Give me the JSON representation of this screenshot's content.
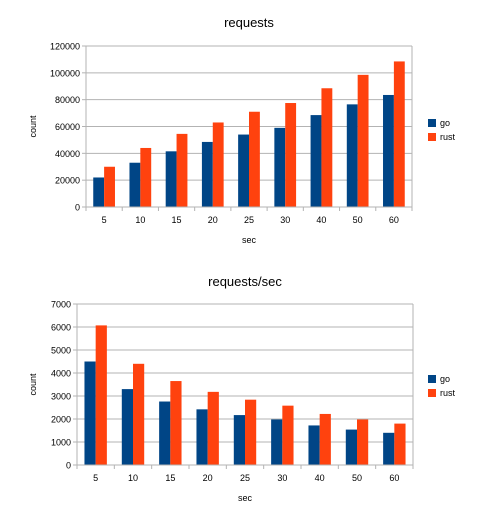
{
  "chart_data": [
    {
      "type": "bar",
      "title": "requests",
      "xlabel": "sec",
      "ylabel": "count",
      "categories": [
        "5",
        "10",
        "15",
        "20",
        "25",
        "30",
        "40",
        "50",
        "60"
      ],
      "series": [
        {
          "name": "go",
          "color": "#004586",
          "values": [
            22000,
            33000,
            41500,
            48500,
            54000,
            59000,
            68500,
            76500,
            83500
          ]
        },
        {
          "name": "rust",
          "color": "#ff420e",
          "values": [
            30000,
            44000,
            54500,
            63000,
            71000,
            77500,
            88500,
            98500,
            108500
          ]
        }
      ],
      "ylim": [
        0,
        120000
      ],
      "yticks": [
        "0",
        "20000",
        "40000",
        "60000",
        "80000",
        "100000",
        "120000"
      ],
      "grid": true,
      "legend": "right"
    },
    {
      "type": "bar",
      "title": "requests/sec",
      "xlabel": "sec",
      "ylabel": "count",
      "categories": [
        "5",
        "10",
        "15",
        "20",
        "25",
        "30",
        "40",
        "50",
        "60"
      ],
      "series": [
        {
          "name": "go",
          "color": "#004586",
          "values": [
            4500,
            3300,
            2760,
            2420,
            2170,
            1980,
            1720,
            1540,
            1400
          ]
        },
        {
          "name": "rust",
          "color": "#ff420e",
          "values": [
            6070,
            4400,
            3650,
            3180,
            2840,
            2580,
            2220,
            1980,
            1800
          ]
        }
      ],
      "ylim": [
        0,
        7000
      ],
      "yticks": [
        "0",
        "1000",
        "2000",
        "3000",
        "4000",
        "5000",
        "6000",
        "7000"
      ],
      "grid": true,
      "legend": "right"
    }
  ]
}
